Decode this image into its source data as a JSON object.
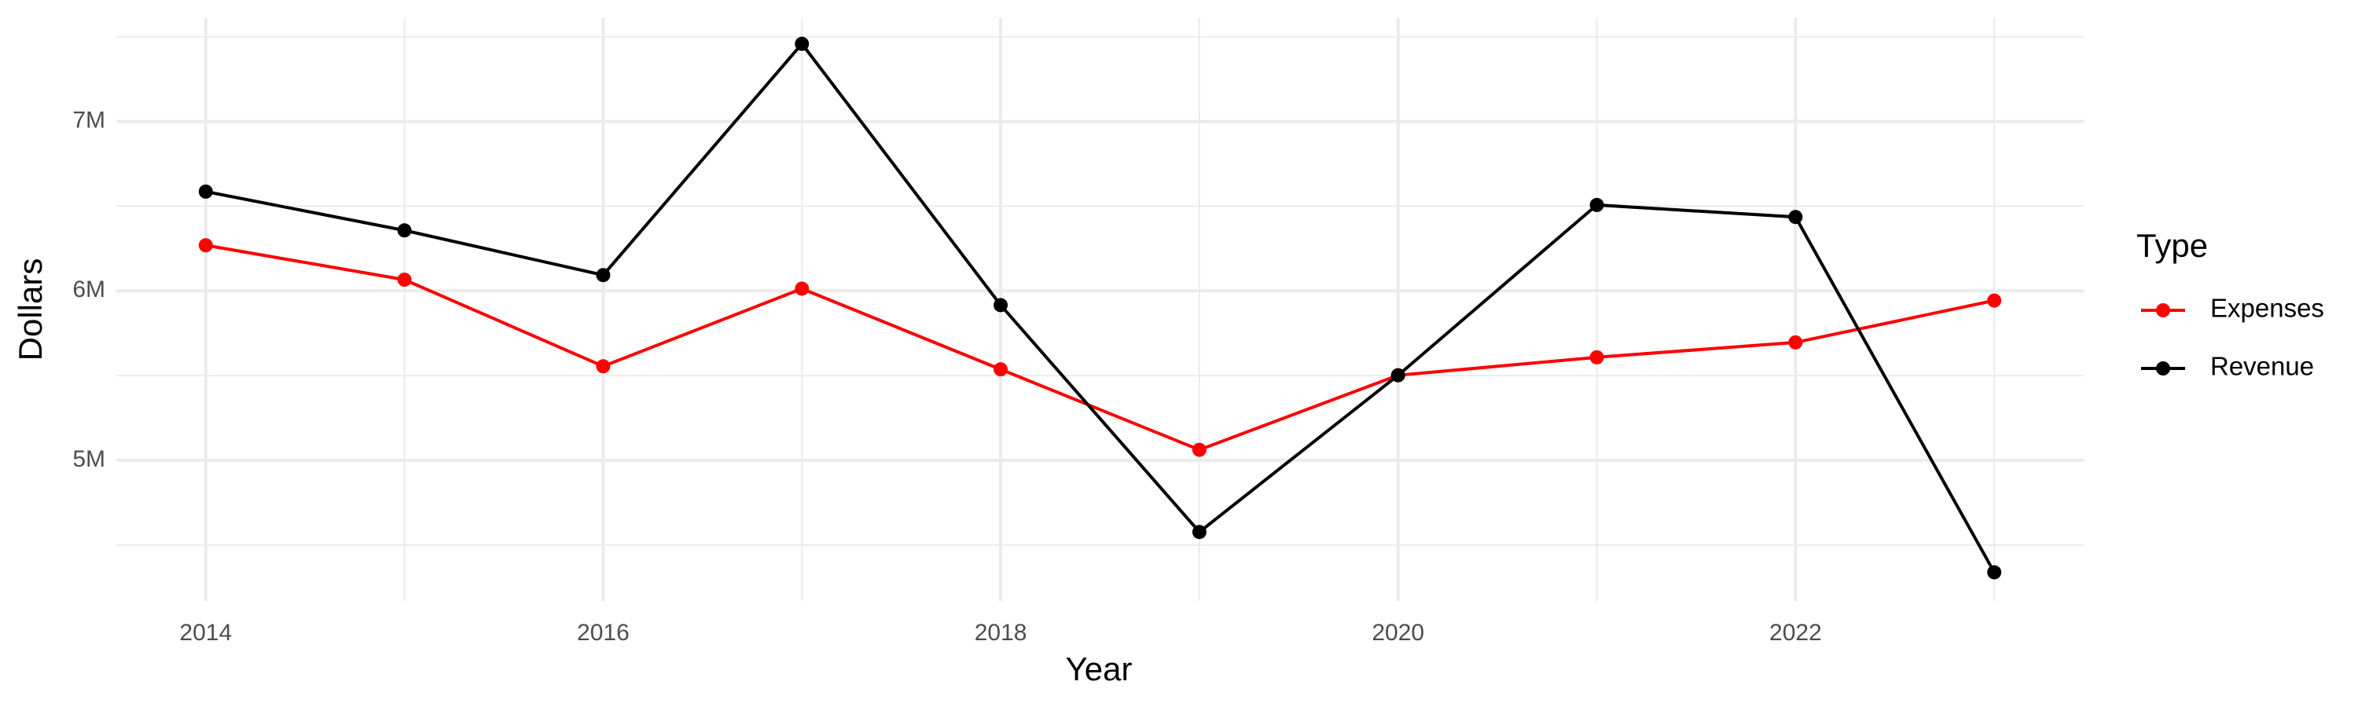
{
  "chart_data": {
    "type": "line",
    "x_label": "Year",
    "y_label": "Dollars",
    "legend_title": "Type",
    "x": [
      2014,
      2015,
      2016,
      2017,
      2018,
      2019,
      2020,
      2021,
      2022,
      2023
    ],
    "series": [
      {
        "name": "Expenses",
        "color": "#ff0000",
        "values": [
          6269000,
          6066000,
          5555000,
          6013000,
          5537000,
          5062000,
          5502000,
          5608000,
          5696000,
          5943000
        ]
      },
      {
        "name": "Revenue",
        "color": "#000000",
        "values": [
          6586000,
          6357000,
          6093000,
          7458000,
          5916000,
          4577000,
          5502000,
          6507000,
          6436000,
          4339000
        ]
      }
    ],
    "xlim": [
      2013.55,
      2023.45
    ],
    "xticks": [
      2014,
      2016,
      2018,
      2020,
      2022
    ],
    "x_minor_ticks": [
      2015,
      2017,
      2019,
      2021,
      2023
    ],
    "ylim": [
      4170000,
      7610000
    ],
    "yticks": [
      {
        "value": 5000000,
        "label": "5M"
      },
      {
        "value": 6000000,
        "label": "6M"
      },
      {
        "value": 7000000,
        "label": "7M"
      }
    ],
    "y_minor_ticks": [
      4500000,
      5500000,
      6500000,
      7500000
    ],
    "grid": true,
    "legend_position": "right"
  }
}
